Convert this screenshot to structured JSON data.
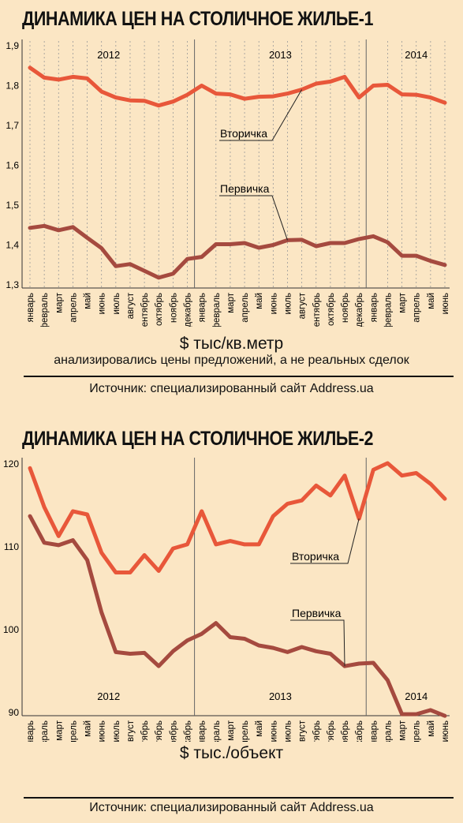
{
  "source": "Источник: специализированный сайт  Address.ua",
  "months": [
    "январь",
    "февраль",
    "март",
    "апрель",
    "май",
    "июнь",
    "июль",
    "август",
    "сентябрь",
    "октябрь",
    "ноябрь",
    "декабрь",
    "январь",
    "февраль",
    "март",
    "апрель",
    "май",
    "июнь",
    "июль",
    "август",
    "сентябрь",
    "октябрь",
    "ноябрь",
    "декабрь",
    "январь",
    "февраль",
    "март",
    "апрель",
    "май",
    "июнь"
  ],
  "colors": {
    "secondary": "#e8573a",
    "primary": "#a54a3f",
    "grid": "#999999"
  },
  "chart_data": [
    {
      "type": "line",
      "title": "ДИНАМИКА ЦЕН НА СТОЛИЧНОЕ ЖИЛЬЕ-1",
      "ylabel": "$ тыс/кв.метр",
      "note": "анализировались цены предложений, а не реальных сделок",
      "ylim": [
        1.3,
        1.9
      ],
      "yticks": [
        "1,3",
        "1,4",
        "1,5",
        "1,6",
        "1,7",
        "1,8",
        "1,9"
      ],
      "year_labels": [
        "2012",
        "2013",
        "2014"
      ],
      "grid": "vertical",
      "series": [
        {
          "name": "Вторичка",
          "values": [
            1.845,
            1.82,
            1.815,
            1.822,
            1.818,
            1.785,
            1.77,
            1.763,
            1.762,
            1.75,
            1.76,
            1.777,
            1.8,
            1.78,
            1.778,
            1.767,
            1.772,
            1.773,
            1.78,
            1.79,
            1.805,
            1.81,
            1.822,
            1.77,
            1.8,
            1.802,
            1.778,
            1.777,
            1.77,
            1.757
          ]
        },
        {
          "name": "Первичка",
          "values": [
            1.443,
            1.448,
            1.437,
            1.445,
            1.418,
            1.392,
            1.347,
            1.352,
            1.335,
            1.318,
            1.328,
            1.365,
            1.37,
            1.402,
            1.402,
            1.405,
            1.393,
            1.4,
            1.412,
            1.413,
            1.397,
            1.405,
            1.405,
            1.415,
            1.422,
            1.407,
            1.373,
            1.373,
            1.36,
            1.35
          ]
        }
      ]
    },
    {
      "type": "line",
      "title": "ДИНАМИКА ЦЕН НА СТОЛИЧНОЕ ЖИЛЬЕ-2",
      "ylabel": "$ тыс./объект",
      "ylim": [
        90,
        120
      ],
      "yticks": [
        "90",
        "100",
        "110",
        "120"
      ],
      "year_labels": [
        "2012",
        "2013",
        "2014"
      ],
      "grid": "none",
      "series": [
        {
          "name": "Вторичка",
          "values": [
            119.5,
            114.8,
            111.3,
            114.3,
            113.9,
            109.3,
            106.9,
            106.9,
            109.0,
            107.1,
            109.8,
            110.3,
            114.3,
            110.3,
            110.7,
            110.3,
            110.3,
            113.7,
            115.2,
            115.6,
            117.4,
            116.2,
            118.6,
            113.4,
            119.3,
            120.1,
            118.6,
            118.9,
            117.6,
            115.8
          ]
        },
        {
          "name": "Первичка",
          "values": [
            113.7,
            110.5,
            110.2,
            110.8,
            108.4,
            102.1,
            97.3,
            97.1,
            97.2,
            95.6,
            97.4,
            98.7,
            99.5,
            100.8,
            99.1,
            98.9,
            98.1,
            97.8,
            97.3,
            97.9,
            97.4,
            97.1,
            95.6,
            95.9,
            96.0,
            93.9,
            89.8,
            89.8,
            90.3,
            89.6
          ]
        }
      ]
    }
  ]
}
